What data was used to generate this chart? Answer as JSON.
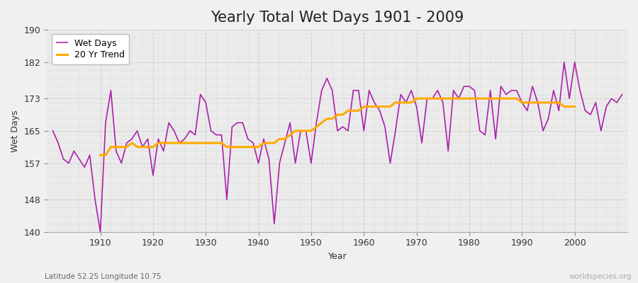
{
  "title": "Yearly Total Wet Days 1901 - 2009",
  "xlabel": "Year",
  "ylabel": "Wet Days",
  "subtitle": "Latitude 52.25 Longitude 10.75",
  "watermark": "worldspecies.org",
  "years": [
    1901,
    1902,
    1903,
    1904,
    1905,
    1906,
    1907,
    1908,
    1909,
    1910,
    1911,
    1912,
    1913,
    1914,
    1915,
    1916,
    1917,
    1918,
    1919,
    1920,
    1921,
    1922,
    1923,
    1924,
    1925,
    1926,
    1927,
    1928,
    1929,
    1930,
    1931,
    1932,
    1933,
    1934,
    1935,
    1936,
    1937,
    1938,
    1939,
    1940,
    1941,
    1942,
    1943,
    1944,
    1945,
    1946,
    1947,
    1948,
    1949,
    1950,
    1951,
    1952,
    1953,
    1954,
    1955,
    1956,
    1957,
    1958,
    1959,
    1960,
    1961,
    1962,
    1963,
    1964,
    1965,
    1966,
    1967,
    1968,
    1969,
    1970,
    1971,
    1972,
    1973,
    1974,
    1975,
    1976,
    1977,
    1978,
    1979,
    1980,
    1981,
    1982,
    1983,
    1984,
    1985,
    1986,
    1987,
    1988,
    1989,
    1990,
    1991,
    1992,
    1993,
    1994,
    1995,
    1996,
    1997,
    1998,
    1999,
    2000,
    2001,
    2002,
    2003,
    2004,
    2005,
    2006,
    2007,
    2008,
    2009
  ],
  "wet_days": [
    165,
    162,
    158,
    157,
    160,
    158,
    156,
    159,
    148,
    140,
    167,
    175,
    160,
    157,
    162,
    163,
    165,
    161,
    163,
    154,
    163,
    160,
    167,
    165,
    162,
    163,
    165,
    164,
    174,
    172,
    165,
    164,
    164,
    148,
    166,
    167,
    167,
    163,
    162,
    157,
    163,
    158,
    142,
    157,
    162,
    167,
    157,
    165,
    165,
    157,
    167,
    175,
    178,
    175,
    165,
    166,
    165,
    175,
    175,
    165,
    175,
    172,
    170,
    166,
    157,
    165,
    174,
    172,
    175,
    171,
    162,
    173,
    173,
    175,
    172,
    160,
    175,
    173,
    176,
    176,
    175,
    165,
    164,
    175,
    163,
    176,
    174,
    175,
    175,
    172,
    170,
    176,
    172,
    165,
    168,
    175,
    170,
    182,
    173,
    182,
    175,
    170,
    169,
    172,
    165,
    171,
    173,
    172,
    174
  ],
  "trend_years": [
    1910,
    1911,
    1912,
    1913,
    1914,
    1915,
    1916,
    1917,
    1918,
    1919,
    1920,
    1921,
    1922,
    1923,
    1924,
    1925,
    1926,
    1927,
    1928,
    1929,
    1930,
    1931,
    1932,
    1933,
    1934,
    1935,
    1936,
    1937,
    1938,
    1939,
    1940,
    1941,
    1942,
    1943,
    1944,
    1945,
    1946,
    1947,
    1948,
    1949,
    1950,
    1951,
    1952,
    1953,
    1954,
    1955,
    1956,
    1957,
    1958,
    1959,
    1960,
    1961,
    1962,
    1963,
    1964,
    1965,
    1966,
    1967,
    1968,
    1969,
    1970,
    1971,
    1972,
    1973,
    1974,
    1975,
    1976,
    1977,
    1978,
    1979,
    1980,
    1981,
    1982,
    1983,
    1984,
    1985,
    1986,
    1987,
    1988,
    1989,
    1990,
    1991,
    1992,
    1993,
    1994,
    1995,
    1996,
    1997,
    1998,
    1999,
    2000
  ],
  "trend_values": [
    159,
    159,
    161,
    161,
    161,
    161,
    162,
    161,
    161,
    161,
    161,
    162,
    162,
    162,
    162,
    162,
    162,
    162,
    162,
    162,
    162,
    162,
    162,
    162,
    161,
    161,
    161,
    161,
    161,
    161,
    161,
    162,
    162,
    162,
    163,
    163,
    164,
    165,
    165,
    165,
    165,
    166,
    167,
    168,
    168,
    169,
    169,
    170,
    170,
    170,
    171,
    171,
    171,
    171,
    171,
    171,
    172,
    172,
    172,
    172,
    173,
    173,
    173,
    173,
    173,
    173,
    173,
    173,
    173,
    173,
    173,
    173,
    173,
    173,
    173,
    173,
    173,
    173,
    173,
    173,
    172,
    172,
    172,
    172,
    172,
    172,
    172,
    172,
    171,
    171,
    171
  ],
  "wet_days_color": "#aa22aa",
  "trend_color": "#ffaa00",
  "fig_bg_color": "#f0f0f0",
  "plot_bg_color": "#ebebeb",
  "ylim": [
    140,
    190
  ],
  "yticks": [
    140,
    148,
    157,
    165,
    173,
    182,
    190
  ],
  "xticks": [
    1910,
    1920,
    1930,
    1940,
    1950,
    1960,
    1970,
    1980,
    1990,
    2000
  ],
  "title_fontsize": 15,
  "label_fontsize": 9,
  "tick_fontsize": 9
}
